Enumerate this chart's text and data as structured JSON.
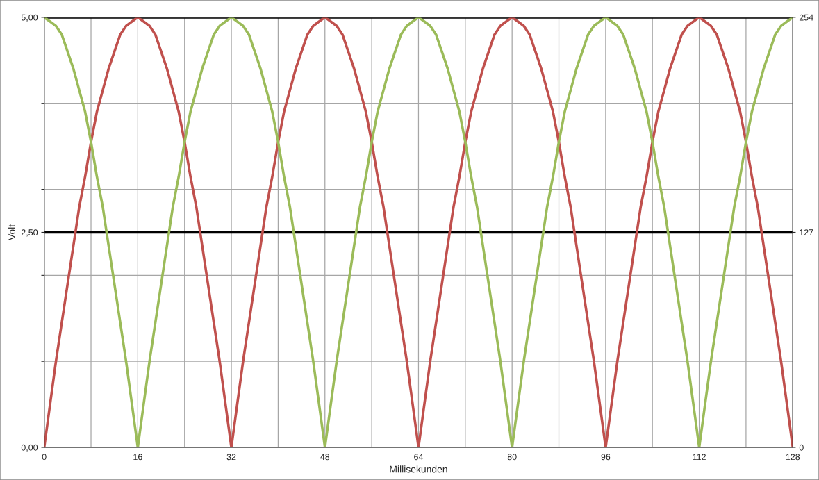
{
  "chart_data": {
    "type": "line",
    "xlabel": "Millisekunden",
    "ylabel": "Volt",
    "x": [
      0,
      1,
      2,
      3,
      4,
      5,
      6,
      7,
      8,
      9,
      10,
      11,
      12,
      13,
      14,
      15,
      16,
      17,
      18,
      19,
      20,
      21,
      22,
      23,
      24,
      25,
      26,
      27,
      28,
      29,
      30,
      31,
      32,
      33,
      34,
      35,
      36,
      37,
      38,
      39,
      40,
      41,
      42,
      43,
      44,
      45,
      46,
      47,
      48,
      49,
      50,
      51,
      52,
      53,
      54,
      55,
      56,
      57,
      58,
      59,
      60,
      61,
      62,
      63,
      64,
      65,
      66,
      67,
      68,
      69,
      70,
      71,
      72,
      73,
      74,
      75,
      76,
      77,
      78,
      79,
      80,
      81,
      82,
      83,
      84,
      85,
      86,
      87,
      88,
      89,
      90,
      91,
      92,
      93,
      94,
      95,
      96,
      97,
      98,
      99,
      100,
      101,
      102,
      103,
      104,
      105,
      106,
      107,
      108,
      109,
      110,
      111,
      112,
      113,
      114,
      115,
      116,
      117,
      118,
      119,
      120,
      121,
      122,
      123,
      124,
      125,
      126,
      127,
      128
    ],
    "series": [
      {
        "color": "#c0504d",
        "values": [
          0,
          0.5,
          1,
          1.45,
          1.9,
          2.35,
          2.8,
          3.15,
          3.55,
          3.9,
          4.15,
          4.4,
          4.6,
          4.8,
          4.9,
          4.95,
          5,
          4.95,
          4.9,
          4.8,
          4.6,
          4.4,
          4.15,
          3.9,
          3.55,
          3.15,
          2.8,
          2.35,
          1.9,
          1.45,
          1,
          0.5,
          0,
          0.5,
          1,
          1.45,
          1.9,
          2.35,
          2.8,
          3.15,
          3.55,
          3.9,
          4.15,
          4.4,
          4.6,
          4.8,
          4.9,
          4.95,
          5,
          4.95,
          4.9,
          4.8,
          4.6,
          4.4,
          4.15,
          3.9,
          3.55,
          3.15,
          2.8,
          2.35,
          1.9,
          1.45,
          1,
          0.5,
          0,
          0.5,
          1,
          1.45,
          1.9,
          2.35,
          2.8,
          3.15,
          3.55,
          3.9,
          4.15,
          4.4,
          4.6,
          4.8,
          4.9,
          4.95,
          5,
          4.95,
          4.9,
          4.8,
          4.6,
          4.4,
          4.15,
          3.9,
          3.55,
          3.15,
          2.8,
          2.35,
          1.9,
          1.45,
          1,
          0.5,
          0,
          0.5,
          1,
          1.45,
          1.9,
          2.35,
          2.8,
          3.15,
          3.55,
          3.9,
          4.15,
          4.4,
          4.6,
          4.8,
          4.9,
          4.95,
          5,
          4.95,
          4.9,
          4.8,
          4.6,
          4.4,
          4.15,
          3.9,
          3.55,
          3.15,
          2.8,
          2.35,
          1.9,
          1.45,
          1,
          0.5,
          0
        ]
      },
      {
        "color": "#9bbb59",
        "values": [
          5,
          4.95,
          4.9,
          4.8,
          4.6,
          4.4,
          4.15,
          3.9,
          3.55,
          3.15,
          2.8,
          2.35,
          1.9,
          1.45,
          1,
          0.5,
          0,
          0.5,
          1,
          1.45,
          1.9,
          2.35,
          2.8,
          3.15,
          3.55,
          3.9,
          4.15,
          4.4,
          4.6,
          4.8,
          4.9,
          4.95,
          5,
          4.95,
          4.9,
          4.8,
          4.6,
          4.4,
          4.15,
          3.9,
          3.55,
          3.15,
          2.8,
          2.35,
          1.9,
          1.45,
          1,
          0.5,
          0,
          0.5,
          1,
          1.45,
          1.9,
          2.35,
          2.8,
          3.15,
          3.55,
          3.9,
          4.15,
          4.4,
          4.6,
          4.8,
          4.9,
          4.95,
          5,
          4.95,
          4.9,
          4.8,
          4.6,
          4.4,
          4.15,
          3.9,
          3.55,
          3.15,
          2.8,
          2.35,
          1.9,
          1.45,
          1,
          0.5,
          0,
          0.5,
          1,
          1.45,
          1.9,
          2.35,
          2.8,
          3.15,
          3.55,
          3.9,
          4.15,
          4.4,
          4.6,
          4.8,
          4.9,
          4.95,
          5,
          4.95,
          4.9,
          4.8,
          4.6,
          4.4,
          4.15,
          3.9,
          3.55,
          3.15,
          2.8,
          2.35,
          1.9,
          1.45,
          1,
          0.5,
          0,
          0.5,
          1,
          1.45,
          1.9,
          2.35,
          2.8,
          3.15,
          3.55,
          3.9,
          4.15,
          4.4,
          4.6,
          4.8,
          4.9,
          4.95,
          5
        ]
      }
    ],
    "xlim": [
      0,
      128
    ],
    "xticks": [
      0,
      {
        "value": 8,
        "label": null
      },
      16,
      {
        "value": 24,
        "label": null
      },
      32,
      {
        "value": 40,
        "label": null
      },
      48,
      {
        "value": 56,
        "label": null
      },
      64,
      {
        "value": 72,
        "label": null
      },
      80,
      {
        "value": 88,
        "label": null
      },
      96,
      {
        "value": 104,
        "label": null
      },
      112,
      {
        "value": 120,
        "label": null
      },
      128
    ],
    "ylim": [
      0,
      5
    ],
    "yticks": [
      {
        "value": 0,
        "label": "0,00"
      },
      {
        "value": 1,
        "label": null
      },
      {
        "value": 2,
        "label": null
      },
      {
        "value": 2.5,
        "label": "2,50"
      },
      {
        "value": 3,
        "label": null
      },
      {
        "value": 4,
        "label": null
      },
      {
        "value": 5,
        "label": "5,00"
      }
    ],
    "y2lim": [
      0,
      254
    ],
    "y2ticks": [
      0,
      127,
      254
    ],
    "ref_lines": [
      {
        "axis": "y",
        "value": 2.5,
        "color": "#000000"
      },
      {
        "axis": "y",
        "value": 5,
        "color": "#000000"
      }
    ],
    "grid": true,
    "marker": "none",
    "line_style": "solid"
  }
}
